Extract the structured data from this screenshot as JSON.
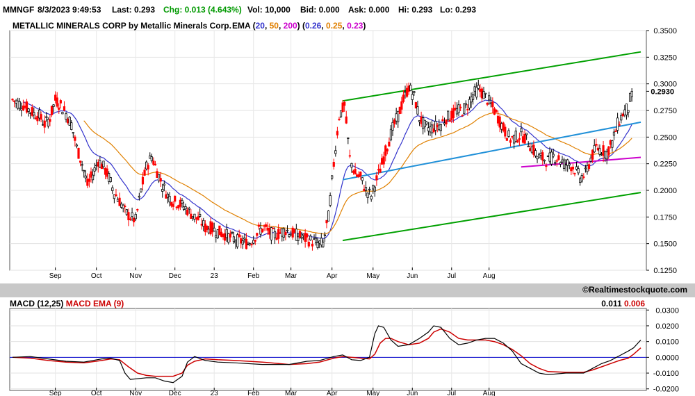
{
  "quote_bar": {
    "symbol": "MMNGF",
    "datetime": "8/3/2023 9:49:53",
    "last": "Last: 0.293",
    "chg": "Chg: 0.013 (4.643%)",
    "vol": "Vol: 10,000",
    "bid": "Bid: 0.000",
    "ask": "Ask: 0.000",
    "hi": "Hi: 0.293",
    "lo": "Lo: 0.293"
  },
  "price_panel": {
    "title": "METALLIC MINERALS CORP by Metallic Minerals Corp.",
    "ema_label": "EMA",
    "ema_periods": [
      "20",
      "50",
      "200"
    ],
    "ema_values": [
      "0.26",
      "0.25",
      "0.23"
    ],
    "last_price_label": "0.2930"
  },
  "watermark": "©Realtimestockquote.com",
  "macd_panel": {
    "title": "MACD (12,25)",
    "signal_title": "MACD EMA (9)",
    "macd_value": "0.011",
    "signal_value": "0.006"
  },
  "colors": {
    "up": "#000000",
    "down": "#ff0000",
    "ema20": "#3333cc",
    "ema50": "#e08000",
    "ema200": "#cc00cc",
    "trend_channel": "#00a000",
    "regression": "#2090d8",
    "macd_line": "#000000",
    "macd_signal": "#cc0000",
    "zero_line": "#0000cc",
    "chg": "#009900",
    "panel_bg": "#c8c8c8"
  },
  "chart_data": [
    {
      "type": "candlestick",
      "title": "METALLIC MINERALS CORP by Metallic Minerals Corp.",
      "x_tick_labels": [
        "Sep",
        "Oct",
        "Nov",
        "Dec",
        "23",
        "Feb",
        "Mar",
        "Apr",
        "May",
        "Jun",
        "Jul",
        "Aug"
      ],
      "y_ticks": [
        "0.3500",
        "0.3250",
        "0.3000",
        "0.2750",
        "0.2500",
        "0.2250",
        "0.2000",
        "0.1750",
        "0.1500",
        "0.1250"
      ],
      "ylim": [
        0.125,
        0.35
      ],
      "y_axis_side": "right",
      "grid": true,
      "last_price": 0.293,
      "series": [
        {
          "name": "EMA 20",
          "value": 0.26
        },
        {
          "name": "EMA 50",
          "value": 0.25
        },
        {
          "name": "EMA 200",
          "value": 0.23
        }
      ],
      "close_path": [
        [
          0,
          0.285
        ],
        [
          3,
          0.282
        ],
        [
          6,
          0.28
        ],
        [
          9,
          0.276
        ],
        [
          12,
          0.272
        ],
        [
          15,
          0.27
        ],
        [
          18,
          0.262
        ],
        [
          21,
          0.268
        ],
        [
          24,
          0.285
        ],
        [
          27,
          0.28
        ],
        [
          30,
          0.272
        ],
        [
          33,
          0.262
        ],
        [
          36,
          0.24
        ],
        [
          39,
          0.225
        ],
        [
          42,
          0.205
        ],
        [
          45,
          0.215
        ],
        [
          48,
          0.228
        ],
        [
          51,
          0.222
        ],
        [
          54,
          0.212
        ],
        [
          57,
          0.198
        ],
        [
          60,
          0.19
        ],
        [
          63,
          0.18
        ],
        [
          66,
          0.175
        ],
        [
          69,
          0.172
        ],
        [
          72,
          0.2
        ],
        [
          75,
          0.222
        ],
        [
          78,
          0.232
        ],
        [
          81,
          0.218
        ],
        [
          84,
          0.205
        ],
        [
          87,
          0.195
        ],
        [
          90,
          0.19
        ],
        [
          93,
          0.188
        ],
        [
          96,
          0.185
        ],
        [
          99,
          0.18
        ],
        [
          102,
          0.175
        ],
        [
          105,
          0.172
        ],
        [
          108,
          0.165
        ],
        [
          111,
          0.165
        ],
        [
          114,
          0.162
        ],
        [
          117,
          0.16
        ],
        [
          120,
          0.158
        ],
        [
          123,
          0.155
        ],
        [
          126,
          0.153
        ],
        [
          129,
          0.152
        ],
        [
          132,
          0.15
        ],
        [
          135,
          0.155
        ],
        [
          138,
          0.162
        ],
        [
          141,
          0.165
        ],
        [
          144,
          0.16
        ],
        [
          147,
          0.158
        ],
        [
          150,
          0.16
        ],
        [
          153,
          0.163
        ],
        [
          156,
          0.16
        ],
        [
          159,
          0.158
        ],
        [
          162,
          0.156
        ],
        [
          165,
          0.154
        ],
        [
          168,
          0.152
        ],
        [
          171,
          0.15
        ],
        [
          174,
          0.15
        ],
        [
          177,
          0.175
        ],
        [
          180,
          0.225
        ],
        [
          183,
          0.27
        ],
        [
          186,
          0.28
        ],
        [
          189,
          0.23
        ],
        [
          192,
          0.215
        ],
        [
          195,
          0.212
        ],
        [
          198,
          0.2
        ],
        [
          201,
          0.195
        ],
        [
          204,
          0.21
        ],
        [
          207,
          0.225
        ],
        [
          210,
          0.242
        ],
        [
          213,
          0.258
        ],
        [
          216,
          0.27
        ],
        [
          219,
          0.285
        ],
        [
          222,
          0.297
        ],
        [
          225,
          0.288
        ],
        [
          228,
          0.268
        ],
        [
          231,
          0.26
        ],
        [
          234,
          0.258
        ],
        [
          237,
          0.26
        ],
        [
          240,
          0.262
        ],
        [
          243,
          0.268
        ],
        [
          246,
          0.27
        ],
        [
          249,
          0.275
        ],
        [
          252,
          0.275
        ],
        [
          255,
          0.28
        ],
        [
          258,
          0.29
        ],
        [
          261,
          0.295
        ],
        [
          264,
          0.29
        ],
        [
          267,
          0.283
        ],
        [
          270,
          0.275
        ],
        [
          273,
          0.265
        ],
        [
          276,
          0.255
        ],
        [
          279,
          0.248
        ],
        [
          282,
          0.25
        ],
        [
          285,
          0.252
        ],
        [
          288,
          0.248
        ],
        [
          291,
          0.24
        ],
        [
          294,
          0.232
        ],
        [
          297,
          0.23
        ],
        [
          300,
          0.228
        ],
        [
          303,
          0.232
        ],
        [
          306,
          0.23
        ],
        [
          309,
          0.225
        ],
        [
          312,
          0.225
        ],
        [
          315,
          0.22
        ],
        [
          318,
          0.212
        ],
        [
          321,
          0.215
        ],
        [
          324,
          0.23
        ],
        [
          327,
          0.24
        ],
        [
          330,
          0.238
        ],
        [
          333,
          0.235
        ],
        [
          336,
          0.245
        ],
        [
          339,
          0.262
        ],
        [
          342,
          0.272
        ],
        [
          345,
          0.278
        ],
        [
          347,
          0.293
        ]
      ],
      "trend_channel_upper": [
        [
          185,
          0.284
        ],
        [
          352,
          0.33
        ]
      ],
      "trend_channel_lower": [
        [
          185,
          0.153
        ],
        [
          352,
          0.198
        ]
      ],
      "regression_line": [
        [
          185,
          0.21
        ],
        [
          352,
          0.264
        ]
      ],
      "ema200_segment": [
        [
          285,
          0.222
        ],
        [
          352,
          0.231
        ]
      ]
    },
    {
      "type": "line",
      "title": "MACD (12,25)",
      "x_tick_labels": [
        "Sep",
        "Oct",
        "Nov",
        "Dec",
        "23",
        "Feb",
        "Mar",
        "Apr",
        "May",
        "Jun",
        "Jul",
        "Aug"
      ],
      "y_ticks": [
        "0.0300",
        "0.0200",
        "0.0100",
        "0.0000",
        "-0.0100",
        "-0.0200"
      ],
      "ylim": [
        -0.021,
        0.031
      ],
      "y_axis_side": "right",
      "series": [
        {
          "name": "MACD (12,25)",
          "last": 0.011,
          "points": [
            [
              0,
              0
            ],
            [
              10,
              0.0005
            ],
            [
              20,
              -0.001
            ],
            [
              30,
              -0.0025
            ],
            [
              40,
              -0.003
            ],
            [
              50,
              -0.001
            ],
            [
              55,
              -0.0005
            ],
            [
              60,
              -0.002
            ],
            [
              63,
              -0.01
            ],
            [
              66,
              -0.014
            ],
            [
              75,
              -0.013
            ],
            [
              80,
              -0.013
            ],
            [
              85,
              -0.015
            ],
            [
              90,
              -0.016
            ],
            [
              95,
              -0.012
            ],
            [
              98,
              -0.003
            ],
            [
              102,
              0.0005
            ],
            [
              108,
              -0.002
            ],
            [
              115,
              -0.003
            ],
            [
              125,
              -0.0035
            ],
            [
              140,
              -0.0045
            ],
            [
              155,
              -0.0045
            ],
            [
              165,
              -0.0025
            ],
            [
              172,
              -0.002
            ],
            [
              180,
              0.0005
            ],
            [
              185,
              0.0015
            ],
            [
              190,
              -0.0015
            ],
            [
              195,
              -0.002
            ],
            [
              200,
              0.0
            ],
            [
              203,
              0.015
            ],
            [
              205,
              0.02
            ],
            [
              208,
              0.019
            ],
            [
              212,
              0.011
            ],
            [
              216,
              0.007
            ],
            [
              222,
              0.008
            ],
            [
              228,
              0.012
            ],
            [
              233,
              0.016
            ],
            [
              236,
              0.02
            ],
            [
              240,
              0.019
            ],
            [
              245,
              0.012
            ],
            [
              250,
              0.008
            ],
            [
              255,
              0.009
            ],
            [
              260,
              0.011
            ],
            [
              265,
              0.012
            ],
            [
              270,
              0.012
            ],
            [
              275,
              0.009
            ],
            [
              280,
              0.004
            ],
            [
              285,
              -0.004
            ],
            [
              290,
              -0.007
            ],
            [
              295,
              -0.01
            ],
            [
              300,
              -0.011
            ],
            [
              310,
              -0.01
            ],
            [
              320,
              -0.01
            ],
            [
              325,
              -0.007
            ],
            [
              330,
              -0.004
            ],
            [
              335,
              -0.002
            ],
            [
              340,
              0.001
            ],
            [
              345,
              0.004
            ],
            [
              348,
              0.006
            ],
            [
              352,
              0.011
            ]
          ]
        },
        {
          "name": "MACD EMA (9)",
          "last": 0.006,
          "points": [
            [
              0,
              0
            ],
            [
              10,
              -0.0005
            ],
            [
              20,
              -0.002
            ],
            [
              30,
              -0.003
            ],
            [
              40,
              -0.0035
            ],
            [
              50,
              -0.002
            ],
            [
              55,
              -0.001
            ],
            [
              60,
              -0.0015
            ],
            [
              65,
              -0.006
            ],
            [
              70,
              -0.01
            ],
            [
              75,
              -0.0115
            ],
            [
              80,
              -0.012
            ],
            [
              90,
              -0.012
            ],
            [
              95,
              -0.01
            ],
            [
              98,
              -0.005
            ],
            [
              102,
              -0.0025
            ],
            [
              108,
              -0.001
            ],
            [
              115,
              -0.0015
            ],
            [
              125,
              -0.002
            ],
            [
              140,
              -0.003
            ],
            [
              155,
              -0.0045
            ],
            [
              165,
              -0.004
            ],
            [
              172,
              -0.003
            ],
            [
              180,
              -0.0005
            ],
            [
              185,
              0.0005
            ],
            [
              195,
              -0.0005
            ],
            [
              200,
              -0.001
            ],
            [
              203,
              0.002
            ],
            [
              206,
              0.009
            ],
            [
              209,
              0.012
            ],
            [
              212,
              0.012
            ],
            [
              216,
              0.01
            ],
            [
              222,
              0.008
            ],
            [
              228,
              0.009
            ],
            [
              233,
              0.012
            ],
            [
              236,
              0.016
            ],
            [
              240,
              0.018
            ],
            [
              245,
              0.016
            ],
            [
              250,
              0.012
            ],
            [
              255,
              0.011
            ],
            [
              260,
              0.011
            ],
            [
              265,
              0.011
            ],
            [
              270,
              0.01
            ],
            [
              275,
              0.008
            ],
            [
              280,
              0.005
            ],
            [
              285,
              0.001
            ],
            [
              290,
              -0.004
            ],
            [
              295,
              -0.007
            ],
            [
              300,
              -0.009
            ],
            [
              310,
              -0.0095
            ],
            [
              320,
              -0.0095
            ],
            [
              325,
              -0.008
            ],
            [
              330,
              -0.006
            ],
            [
              335,
              -0.004
            ],
            [
              340,
              -0.002
            ],
            [
              345,
              -0.0005
            ],
            [
              348,
              0.002
            ],
            [
              352,
              0.006
            ]
          ]
        }
      ]
    }
  ]
}
